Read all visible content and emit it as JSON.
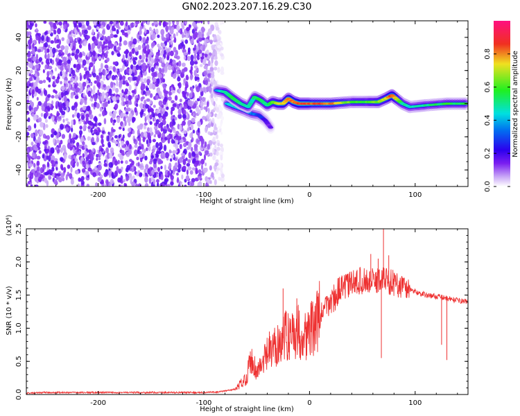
{
  "title": "GN02.2023.207.16.29.C30",
  "colors": {
    "snr_line": "#ee3030",
    "colormap": [
      "#ffffff",
      "#d6b8f8",
      "#7a1ef0",
      "#2c00ee",
      "#00d8f0",
      "#20f020",
      "#f0d020",
      "#f02020",
      "#ff1080"
    ]
  },
  "chart_data": [
    {
      "type": "heatmap",
      "title": "GN02.2023.207.16.29.C30",
      "xlabel": "Height of straight line (km)",
      "ylabel": "Frequency (Hz)",
      "xlim": [
        -268,
        150
      ],
      "ylim": [
        -50,
        50
      ],
      "x_ticks": [
        "-200",
        "-100",
        "0",
        "100"
      ],
      "y_ticks": [
        "-40",
        "-20",
        "0",
        "20",
        "40"
      ],
      "colorbar": {
        "label": "Normalized spectral amplitude",
        "range": [
          0.0,
          1.0
        ],
        "ticks": [
          "0.0",
          "0.2",
          "0.4",
          "0.6",
          "0.8"
        ]
      },
      "noise_region_x": [
        -268,
        -88
      ],
      "ridge": {
        "x": [
          -88,
          -80,
          -72,
          -65,
          -58,
          -52,
          -46,
          -40,
          -35,
          -30,
          -25,
          -20,
          -15,
          -10,
          0,
          20,
          40,
          55,
          65,
          72,
          78,
          82,
          88,
          95,
          110,
          130,
          150
        ],
        "frequency": [
          8,
          7,
          3,
          0,
          -2,
          4,
          2,
          -1,
          1,
          0,
          0,
          3,
          1,
          0,
          0,
          0,
          1,
          1,
          1,
          3,
          5,
          3,
          0,
          -2,
          -1,
          0,
          0
        ],
        "amplitude": [
          0.35,
          0.5,
          0.55,
          0.5,
          0.45,
          0.5,
          0.55,
          0.5,
          0.6,
          0.7,
          0.75,
          0.8,
          0.8,
          0.85,
          0.85,
          0.82,
          0.6,
          0.6,
          0.65,
          0.7,
          0.85,
          0.75,
          0.5,
          0.45,
          0.5,
          0.55,
          0.55
        ]
      },
      "ridge_lower_branch": {
        "x": [
          -78,
          -70,
          -62,
          -55,
          -48,
          -42,
          -36
        ],
        "frequency": [
          0,
          -2,
          -4,
          -6,
          -7,
          -10,
          -15
        ],
        "amplitude": [
          0.4,
          0.45,
          0.4,
          0.35,
          0.3,
          0.2,
          0.15
        ]
      }
    },
    {
      "type": "line",
      "xlabel": "Height of straight line (km)",
      "ylabel": "SNR (10 * v/v)",
      "y_multiplier": "(x10⁴)",
      "xlim": [
        -268,
        150
      ],
      "ylim": [
        0,
        2.5
      ],
      "x_ticks": [
        "-200",
        "-100",
        "0",
        "100"
      ],
      "y_ticks": [
        "0.0",
        "0.5",
        "1.0",
        "1.5",
        "2.0",
        "2.5"
      ],
      "series": [
        {
          "x": [
            -268,
            -250,
            -200,
            -150,
            -100,
            -85,
            -70,
            -60,
            -55,
            -50,
            -45,
            -40,
            -35,
            -30,
            -25,
            -20,
            -15,
            -10,
            -5,
            0,
            5,
            10,
            20,
            30,
            40,
            50,
            60,
            70,
            80,
            90,
            100,
            110,
            120,
            130,
            140,
            150
          ],
          "values": [
            0.02,
            0.03,
            0.03,
            0.03,
            0.03,
            0.04,
            0.08,
            0.25,
            0.55,
            0.35,
            0.45,
            0.6,
            0.65,
            0.8,
            0.85,
            0.9,
            0.95,
            0.95,
            0.9,
            0.95,
            1.05,
            1.2,
            1.4,
            1.6,
            1.68,
            1.72,
            1.7,
            1.75,
            1.68,
            1.62,
            1.55,
            1.5,
            1.48,
            1.45,
            1.42,
            1.4
          ],
          "spikes": [
            {
              "x": -56,
              "y": 0.65
            },
            {
              "x": -38,
              "y": 0.95
            },
            {
              "x": -25,
              "y": 1.6
            },
            {
              "x": -22,
              "y": 1.25
            },
            {
              "x": -12,
              "y": 1.45
            },
            {
              "x": 45,
              "y": 1.88
            },
            {
              "x": 58,
              "y": 2.12
            },
            {
              "x": 65,
              "y": 2.05
            },
            {
              "x": 70,
              "y": 2.5
            },
            {
              "x": 75,
              "y": 2.1
            },
            {
              "x": 68,
              "y": 0.55
            },
            {
              "x": 125,
              "y": 0.75
            },
            {
              "x": 130,
              "y": 0.52
            }
          ]
        }
      ]
    }
  ]
}
